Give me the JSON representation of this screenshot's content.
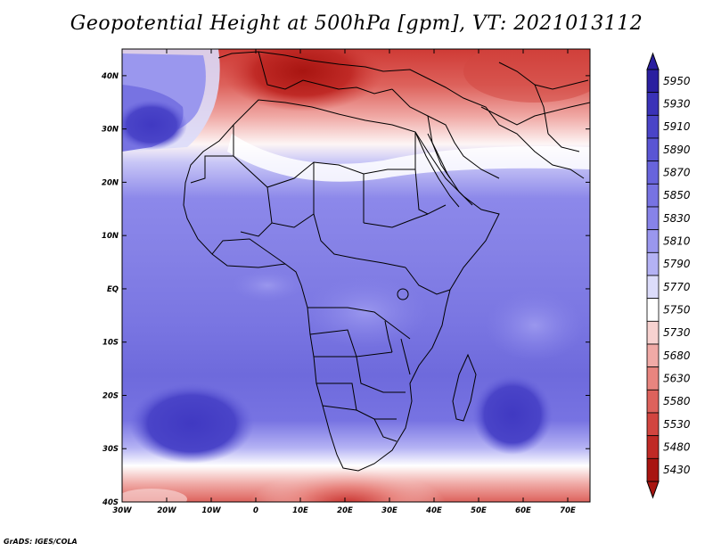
{
  "title": "Geopotential Height at 500hPa [gpm], VT: 2021013112",
  "footer": "GrADS: IGES/COLA",
  "lat_labels": [
    "40N",
    "30N",
    "20N",
    "10N",
    "EQ",
    "10S",
    "20S",
    "30S",
    "40S"
  ],
  "lon_labels": [
    "30W",
    "20W",
    "10W",
    "0",
    "10E",
    "20E",
    "30E",
    "40E",
    "50E",
    "60E",
    "70E"
  ],
  "colorbar": {
    "levels": [
      "5950",
      "5930",
      "5910",
      "5890",
      "5870",
      "5850",
      "5830",
      "5810",
      "5790",
      "5770",
      "5750",
      "5730",
      "5680",
      "5630",
      "5580",
      "5530",
      "5480",
      "5430"
    ],
    "colors": [
      "#2a1fa0",
      "#3a32b8",
      "#4a44c8",
      "#5a55d4",
      "#6864dc",
      "#7773e2",
      "#8783e8",
      "#9a97ee",
      "#b4b2f4",
      "#dcdcfa",
      "#ffffff",
      "#f7d2d0",
      "#f0aaa6",
      "#e8857f",
      "#dd625c",
      "#d24540",
      "#c02a26",
      "#a81511"
    ]
  },
  "colors": {
    "ocean_base": "#7c78e6",
    "deep_blue": "#4a44c8",
    "border": "#000000"
  }
}
